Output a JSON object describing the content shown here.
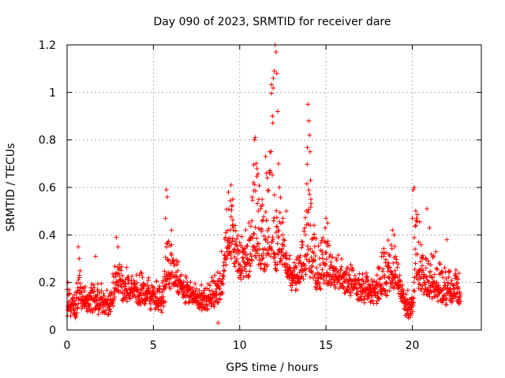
{
  "chart_data": {
    "type": "scatter",
    "title": "Day 090 of 2023, SRMTID for receiver dare",
    "xlabel": "GPS time / hours",
    "ylabel": "SRMTID / TECUs",
    "xlim": [
      0,
      24
    ],
    "ylim": [
      0,
      1.2
    ],
    "xticks": [
      0,
      5,
      10,
      15,
      20
    ],
    "xtick_labels": [
      "0",
      "5",
      "10",
      "15",
      "20"
    ],
    "yticks": [
      0,
      0.2,
      0.4,
      0.6,
      0.8,
      1.0,
      1.2
    ],
    "ytick_labels": [
      "0",
      "0.2",
      "0.4",
      "0.6",
      "0.8",
      "1",
      "1.2"
    ],
    "grid": true,
    "marker": "+",
    "series": [
      {
        "name": "SRMTID",
        "color": "#ff0000",
        "profile": {
          "hours": [
            0.0,
            0.5,
            0.7,
            1.0,
            1.5,
            2.0,
            2.5,
            2.9,
            3.3,
            3.8,
            4.5,
            5.0,
            5.5,
            5.8,
            6.1,
            6.6,
            7.0,
            7.5,
            8.0,
            8.6,
            9.0,
            9.3,
            9.6,
            10.0,
            10.5,
            10.9,
            11.2,
            11.6,
            11.9,
            12.1,
            12.4,
            12.8,
            13.2,
            13.7,
            14.0,
            14.4,
            14.9,
            15.3,
            15.8,
            16.3,
            16.8,
            17.3,
            17.8,
            18.3,
            18.8,
            19.2,
            19.6,
            20.0,
            20.2,
            20.6,
            21.0,
            21.5,
            22.0,
            22.5,
            22.8
          ],
          "level": [
            0.12,
            0.11,
            0.18,
            0.13,
            0.14,
            0.13,
            0.12,
            0.22,
            0.18,
            0.19,
            0.16,
            0.15,
            0.14,
            0.22,
            0.25,
            0.2,
            0.17,
            0.16,
            0.14,
            0.16,
            0.2,
            0.38,
            0.35,
            0.27,
            0.29,
            0.38,
            0.3,
            0.33,
            0.4,
            0.3,
            0.35,
            0.25,
            0.22,
            0.28,
            0.3,
            0.22,
            0.24,
            0.25,
            0.23,
            0.22,
            0.19,
            0.18,
            0.17,
            0.19,
            0.24,
            0.22,
            0.12,
            0.11,
            0.25,
            0.22,
            0.19,
            0.18,
            0.17,
            0.18,
            0.16
          ],
          "spread": [
            0.06,
            0.06,
            0.12,
            0.07,
            0.08,
            0.07,
            0.07,
            0.14,
            0.09,
            0.09,
            0.08,
            0.07,
            0.08,
            0.2,
            0.12,
            0.08,
            0.06,
            0.06,
            0.07,
            0.08,
            0.15,
            0.2,
            0.22,
            0.12,
            0.2,
            0.42,
            0.35,
            0.25,
            0.8,
            0.3,
            0.22,
            0.1,
            0.1,
            0.15,
            0.65,
            0.2,
            0.22,
            0.12,
            0.08,
            0.08,
            0.08,
            0.08,
            0.08,
            0.22,
            0.2,
            0.1,
            0.07,
            0.06,
            0.35,
            0.15,
            0.18,
            0.15,
            0.1,
            0.12,
            0.08
          ]
        },
        "sample_step_hours": 0.012,
        "peak_points": [
          {
            "x": 0.05,
            "y": 0.2
          },
          {
            "x": 0.65,
            "y": 0.35
          },
          {
            "x": 0.7,
            "y": 0.3
          },
          {
            "x": 1.65,
            "y": 0.31
          },
          {
            "x": 2.85,
            "y": 0.39
          },
          {
            "x": 2.95,
            "y": 0.35
          },
          {
            "x": 5.75,
            "y": 0.59
          },
          {
            "x": 5.8,
            "y": 0.56
          },
          {
            "x": 5.7,
            "y": 0.47
          },
          {
            "x": 6.05,
            "y": 0.42
          },
          {
            "x": 9.35,
            "y": 0.58
          },
          {
            "x": 9.5,
            "y": 0.61
          },
          {
            "x": 9.6,
            "y": 0.55
          },
          {
            "x": 10.8,
            "y": 0.62
          },
          {
            "x": 10.85,
            "y": 0.8
          },
          {
            "x": 10.9,
            "y": 0.81
          },
          {
            "x": 11.5,
            "y": 0.73
          },
          {
            "x": 11.55,
            "y": 0.66
          },
          {
            "x": 11.6,
            "y": 0.64
          },
          {
            "x": 11.75,
            "y": 0.75
          },
          {
            "x": 11.9,
            "y": 0.9
          },
          {
            "x": 11.95,
            "y": 1.06
          },
          {
            "x": 12.0,
            "y": 1.09
          },
          {
            "x": 12.05,
            "y": 1.2
          },
          {
            "x": 12.1,
            "y": 1.17
          },
          {
            "x": 12.15,
            "y": 1.08
          },
          {
            "x": 12.2,
            "y": 0.92
          },
          {
            "x": 12.25,
            "y": 0.7
          },
          {
            "x": 12.3,
            "y": 0.6
          },
          {
            "x": 12.7,
            "y": 0.5
          },
          {
            "x": 13.95,
            "y": 0.95
          },
          {
            "x": 14.0,
            "y": 0.88
          },
          {
            "x": 14.05,
            "y": 0.82
          },
          {
            "x": 14.08,
            "y": 0.75
          },
          {
            "x": 14.1,
            "y": 0.63
          },
          {
            "x": 14.12,
            "y": 0.55
          },
          {
            "x": 15.0,
            "y": 0.47
          },
          {
            "x": 15.1,
            "y": 0.45
          },
          {
            "x": 18.85,
            "y": 0.42
          },
          {
            "x": 18.95,
            "y": 0.4
          },
          {
            "x": 20.05,
            "y": 0.59
          },
          {
            "x": 20.12,
            "y": 0.6
          },
          {
            "x": 20.0,
            "y": 0.47
          },
          {
            "x": 20.2,
            "y": 0.44
          },
          {
            "x": 20.85,
            "y": 0.51
          },
          {
            "x": 21.0,
            "y": 0.43
          },
          {
            "x": 22.0,
            "y": 0.38
          },
          {
            "x": 12.5,
            "y": 0.47
          },
          {
            "x": 11.1,
            "y": 0.55
          },
          {
            "x": 11.3,
            "y": 0.55
          },
          {
            "x": 9.55,
            "y": 0.52
          },
          {
            "x": 8.75,
            "y": 0.03
          },
          {
            "x": 19.8,
            "y": 0.05
          }
        ]
      }
    ]
  }
}
